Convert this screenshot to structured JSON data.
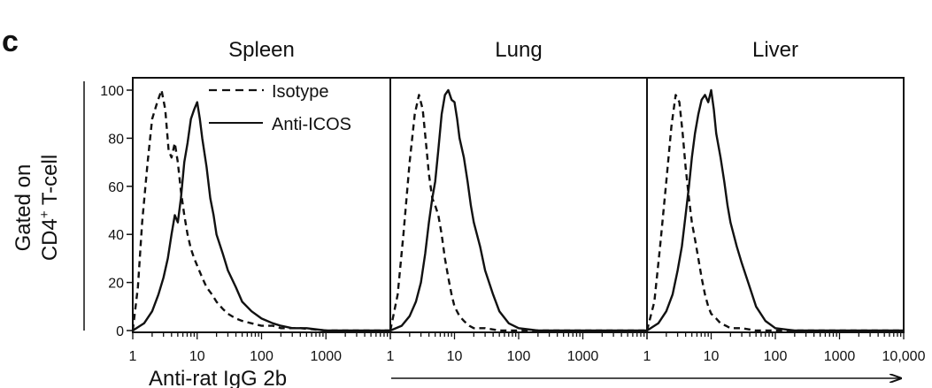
{
  "panel_label": "c",
  "y_axis": {
    "label_line1": "Gated on",
    "label_line2_main": "CD4",
    "label_line2_sup": "+",
    "label_line2_rest": " T-cell",
    "ticks": [
      "0",
      "20",
      "40",
      "60",
      "80",
      "100"
    ]
  },
  "x_axis": {
    "label": "Anti-rat IgG 2b"
  },
  "legend": [
    {
      "name": "Isotype",
      "style": "dashed"
    },
    {
      "name": "Anti-ICOS",
      "style": "solid"
    }
  ],
  "colors": {
    "line": "#111111",
    "background": "#ffffff"
  },
  "chart_data": [
    {
      "type": "line",
      "title": "Spleen",
      "x_scale": "log",
      "xlim": [
        1,
        10000
      ],
      "ylim": [
        0,
        100
      ],
      "x_ticks": [
        "1",
        "10",
        "100",
        "1000"
      ],
      "series": [
        {
          "name": "Isotype",
          "style": "dashed",
          "x": [
            1,
            1.2,
            1.4,
            1.7,
            2.0,
            2.4,
            2.8,
            3.2,
            3.6,
            4.0,
            4.5,
            5.0,
            5.6,
            6.3,
            7.1,
            8.0,
            9.0,
            10,
            12,
            14,
            17,
            20,
            25,
            30,
            40,
            50,
            70,
            100,
            150,
            200,
            400,
            1000,
            10000
          ],
          "y": [
            0,
            18,
            45,
            70,
            88,
            95,
            100,
            92,
            75,
            72,
            78,
            70,
            58,
            48,
            40,
            34,
            30,
            27,
            22,
            18,
            15,
            12,
            9,
            7,
            5,
            4,
            3,
            2,
            2,
            1,
            1,
            0,
            0
          ]
        },
        {
          "name": "Anti-ICOS",
          "style": "solid",
          "x": [
            1,
            1.5,
            2.0,
            2.5,
            3.0,
            3.5,
            4.0,
            4.5,
            5.0,
            5.6,
            6.3,
            7.1,
            8.0,
            9.0,
            10,
            11,
            12,
            14,
            16,
            18,
            20,
            25,
            30,
            40,
            50,
            70,
            100,
            150,
            200,
            300,
            500,
            1000,
            10000
          ],
          "y": [
            0,
            3,
            8,
            15,
            22,
            30,
            40,
            48,
            45,
            55,
            70,
            78,
            88,
            92,
            95,
            88,
            80,
            68,
            55,
            48,
            40,
            32,
            25,
            18,
            12,
            8,
            5,
            3,
            2,
            1,
            1,
            0,
            0
          ]
        }
      ]
    },
    {
      "type": "line",
      "title": "Lung",
      "x_scale": "log",
      "xlim": [
        1,
        10000
      ],
      "ylim": [
        0,
        100
      ],
      "x_ticks": [
        "1",
        "10",
        "100",
        "1000"
      ],
      "series": [
        {
          "name": "Isotype",
          "style": "dashed",
          "x": [
            1,
            1.3,
            1.6,
            2.0,
            2.4,
            2.8,
            3.2,
            3.6,
            4.0,
            4.5,
            5.0,
            5.6,
            6.3,
            7.1,
            8.0,
            9.0,
            10,
            12,
            14,
            17,
            20,
            30,
            50,
            100,
            10000
          ],
          "y": [
            0,
            15,
            40,
            70,
            90,
            98,
            92,
            78,
            65,
            55,
            52,
            48,
            40,
            30,
            22,
            15,
            10,
            6,
            4,
            2,
            1,
            1,
            0,
            0,
            0
          ]
        },
        {
          "name": "Anti-ICOS",
          "style": "solid",
          "x": [
            1,
            1.5,
            2.0,
            2.5,
            3.0,
            3.5,
            4.0,
            4.5,
            5.0,
            5.6,
            6.3,
            7.1,
            8.0,
            9.0,
            10,
            11,
            12,
            14,
            16,
            18,
            20,
            25,
            30,
            40,
            50,
            70,
            100,
            200,
            10000
          ],
          "y": [
            0,
            2,
            6,
            12,
            20,
            32,
            45,
            55,
            62,
            75,
            90,
            98,
            100,
            96,
            95,
            88,
            80,
            72,
            62,
            52,
            45,
            35,
            25,
            15,
            8,
            3,
            1,
            0,
            0
          ]
        }
      ]
    },
    {
      "type": "line",
      "title": "Liver",
      "x_scale": "log",
      "xlim": [
        1,
        10000
      ],
      "ylim": [
        0,
        100
      ],
      "x_ticks": [
        "1",
        "10",
        "100",
        "1000",
        "10,000"
      ],
      "series": [
        {
          "name": "Isotype",
          "style": "dashed",
          "x": [
            1,
            1.3,
            1.6,
            2.0,
            2.4,
            2.8,
            3.2,
            3.6,
            4.0,
            4.5,
            5.0,
            5.6,
            6.3,
            7.1,
            8.0,
            9.0,
            10,
            12,
            14,
            17,
            20,
            30,
            50,
            100,
            10000
          ],
          "y": [
            0,
            12,
            35,
            62,
            85,
            98,
            95,
            82,
            68,
            55,
            45,
            38,
            30,
            22,
            15,
            10,
            7,
            5,
            3,
            2,
            1,
            1,
            0,
            0,
            0
          ]
        },
        {
          "name": "Anti-ICOS",
          "style": "solid",
          "x": [
            1,
            1.5,
            2.0,
            2.5,
            3.0,
            3.5,
            4.0,
            4.5,
            5.0,
            5.6,
            6.3,
            7.1,
            8.0,
            9.0,
            10,
            11,
            12,
            14,
            16,
            18,
            20,
            25,
            30,
            40,
            50,
            70,
            100,
            200,
            10000
          ],
          "y": [
            0,
            3,
            8,
            15,
            25,
            35,
            48,
            60,
            72,
            82,
            90,
            96,
            98,
            95,
            100,
            92,
            82,
            72,
            62,
            52,
            45,
            35,
            28,
            18,
            10,
            4,
            1,
            0,
            0
          ]
        }
      ]
    }
  ]
}
